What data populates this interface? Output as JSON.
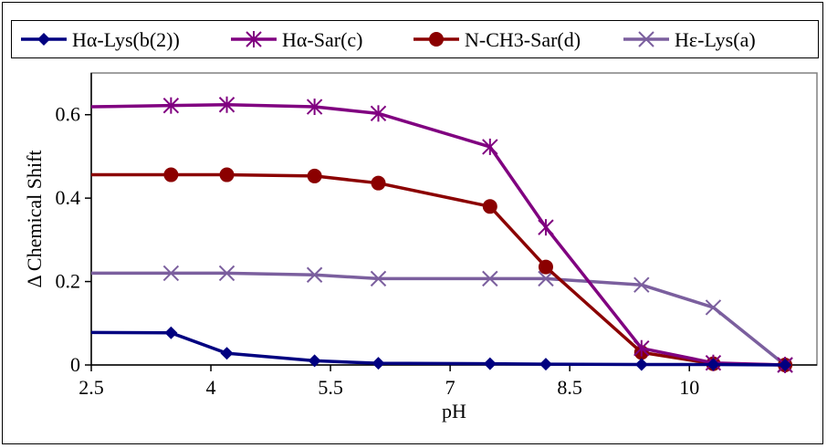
{
  "chart_data": {
    "type": "line",
    "xlabel": "pH",
    "ylabel": "Δ Chemical Shift",
    "xlim": [
      2.5,
      11.6
    ],
    "ylim": [
      0,
      0.7
    ],
    "x_ticks": [
      "2.5",
      "4",
      "5.5",
      "7",
      "8.5",
      "10"
    ],
    "y_ticks": [
      "0",
      "0.2",
      "0.4",
      "0.6"
    ],
    "legend_position": "top",
    "grid": false,
    "series": [
      {
        "name": "Hα-Lys(b(2))",
        "color": "#000080",
        "marker": "diamond",
        "x": [
          2.5,
          3.5,
          4.2,
          5.3,
          6.1,
          7.5,
          8.2,
          9.4,
          10.3,
          11.2
        ],
        "y": [
          0.078,
          0.077,
          0.028,
          0.01,
          0.004,
          0.003,
          0.002,
          0.001,
          0.001,
          0.0
        ]
      },
      {
        "name": "Hα-Sar(c)",
        "color": "#800080",
        "marker": "asterisk",
        "x": [
          2.5,
          3.5,
          4.2,
          5.3,
          6.1,
          7.5,
          8.2,
          9.4,
          10.3,
          11.2
        ],
        "y": [
          0.619,
          0.622,
          0.624,
          0.619,
          0.603,
          0.523,
          0.33,
          0.04,
          0.005,
          0.0
        ]
      },
      {
        "name": "N-CH3-Sar(d)",
        "color": "#8B0000",
        "marker": "circle",
        "x": [
          2.5,
          3.5,
          4.2,
          5.3,
          6.1,
          7.5,
          8.2,
          9.4,
          10.3,
          11.2
        ],
        "y": [
          0.456,
          0.456,
          0.456,
          0.453,
          0.436,
          0.38,
          0.235,
          0.03,
          0.003,
          0.0
        ]
      },
      {
        "name": "Hε-Lys(a)",
        "color": "#7B5F9E",
        "marker": "x",
        "x": [
          2.5,
          3.5,
          4.2,
          5.3,
          6.1,
          7.5,
          8.2,
          9.4,
          10.3,
          11.2
        ],
        "y": [
          0.22,
          0.22,
          0.22,
          0.216,
          0.207,
          0.207,
          0.207,
          0.192,
          0.138,
          0.0
        ]
      }
    ]
  }
}
